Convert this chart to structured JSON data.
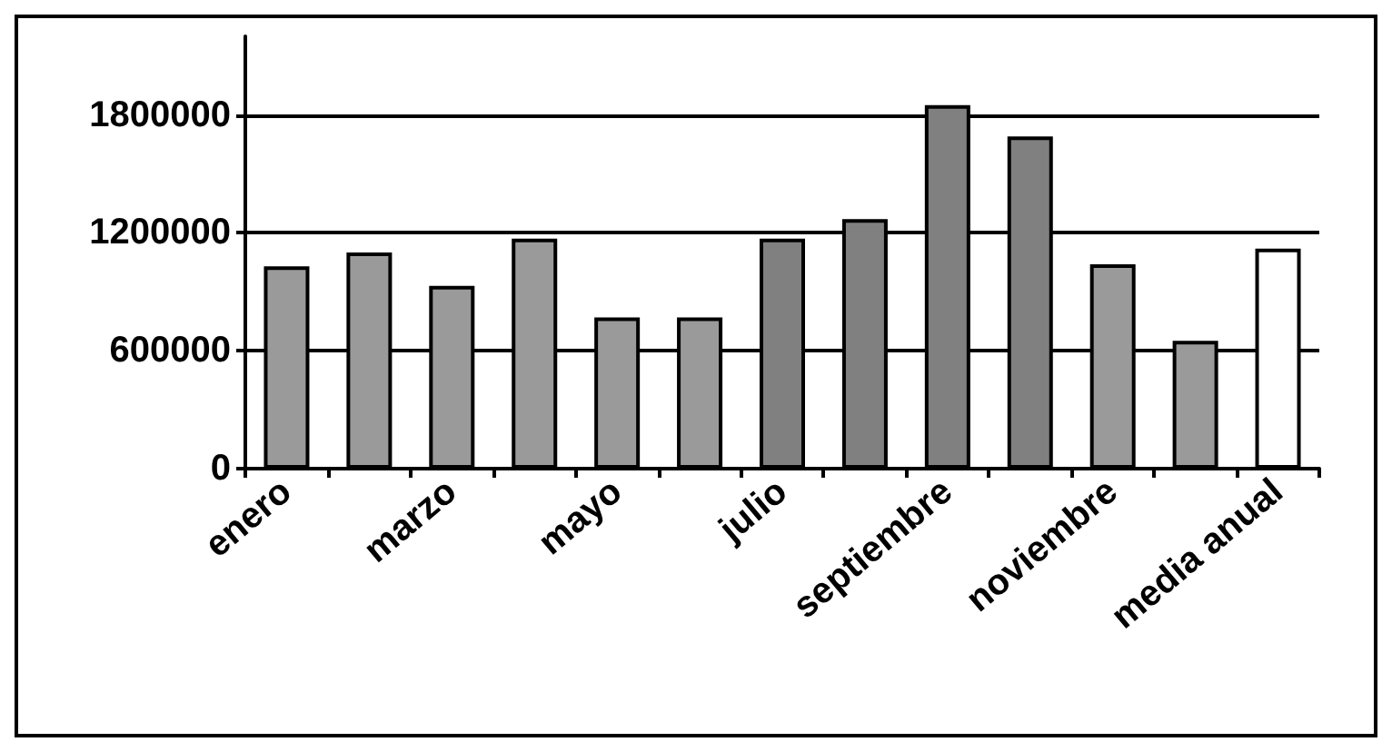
{
  "chart_data": {
    "type": "bar",
    "categories": [
      "enero",
      null,
      "marzo",
      null,
      "mayo",
      null,
      "julio",
      null,
      "septiembre",
      null,
      "noviembre",
      null,
      "media anual"
    ],
    "values": [
      1030000,
      1100000,
      930000,
      1170000,
      770000,
      770000,
      1170000,
      1270000,
      1850000,
      1690000,
      1040000,
      650000,
      1120000
    ],
    "colors": [
      "#9a9a9a",
      "#9a9a9a",
      "#9a9a9a",
      "#9a9a9a",
      "#9a9a9a",
      "#9a9a9a",
      "#808080",
      "#808080",
      "#808080",
      "#808080",
      "#9a9a9a",
      "#9a9a9a",
      "#ffffff"
    ],
    "ylim": [
      0,
      2200000
    ],
    "yticks": [
      0,
      600000,
      1200000,
      1800000
    ],
    "grid": "y"
  }
}
